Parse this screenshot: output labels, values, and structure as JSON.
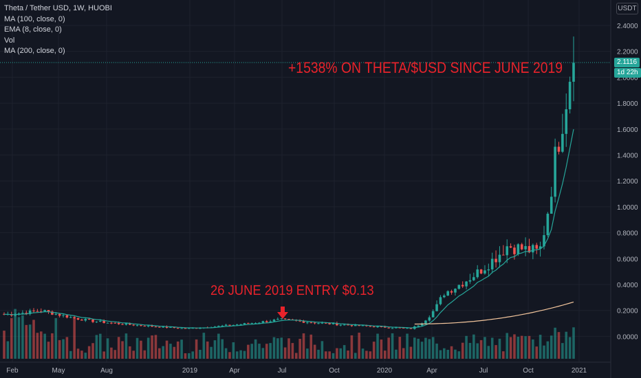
{
  "legend": {
    "title": "Theta / Tether USD, 1W, HUOBI",
    "line1": "MA (100, close, 0)",
    "line2": "EMA (8, close, 0)",
    "line3": "Vol",
    "line4": "MA (200, close, 0)"
  },
  "currency": "USDT",
  "annotations": {
    "top": "+1538% ON THETA/$USD SINCE JUNE 2019",
    "bottom": "26 JUNE 2019 ENTRY $0.13"
  },
  "price_tag": "2.1116",
  "countdown_tag": "1d 22h",
  "colors": {
    "background": "#131722",
    "up": "#26a69a",
    "down": "#ef5350",
    "ema": "#26a69a",
    "ma200": "#f5c79e",
    "annotation": "#e8232b",
    "axis_text": "#b2b5be"
  },
  "chart_data": {
    "type": "candlestick",
    "x_axis_labels": [
      "Feb",
      "May",
      "Aug",
      "2019",
      "Apr",
      "Jul",
      "Oct",
      "2020",
      "Apr",
      "Jul",
      "Oct",
      "2021"
    ],
    "y_axis_labels": [
      "2.4000",
      "2.2000",
      "2.0000",
      "1.8000",
      "1.6000",
      "1.4000",
      "1.2000",
      "1.0000",
      "0.8000",
      "0.6000",
      "0.4000",
      "0.2000",
      "0.0000"
    ],
    "ylim": [
      -0.1,
      2.5
    ],
    "last_price": 2.1116,
    "entry_marker": {
      "date": "2019-06-26",
      "price": 0.13
    },
    "key_points": [
      {
        "date": "2018-02",
        "close": 0.17
      },
      {
        "date": "2018-04",
        "close": 0.2
      },
      {
        "date": "2018-07",
        "close": 0.12
      },
      {
        "date": "2019-01",
        "close": 0.06
      },
      {
        "date": "2019-06-26",
        "close": 0.13
      },
      {
        "date": "2020-03",
        "close": 0.06
      },
      {
        "date": "2020-05",
        "close": 0.33
      },
      {
        "date": "2020-09",
        "close": 0.7
      },
      {
        "date": "2020-11",
        "close": 0.65
      },
      {
        "date": "2020-12",
        "close": 1.4
      },
      {
        "date": "2021-01",
        "close": 2.1116
      }
    ]
  }
}
